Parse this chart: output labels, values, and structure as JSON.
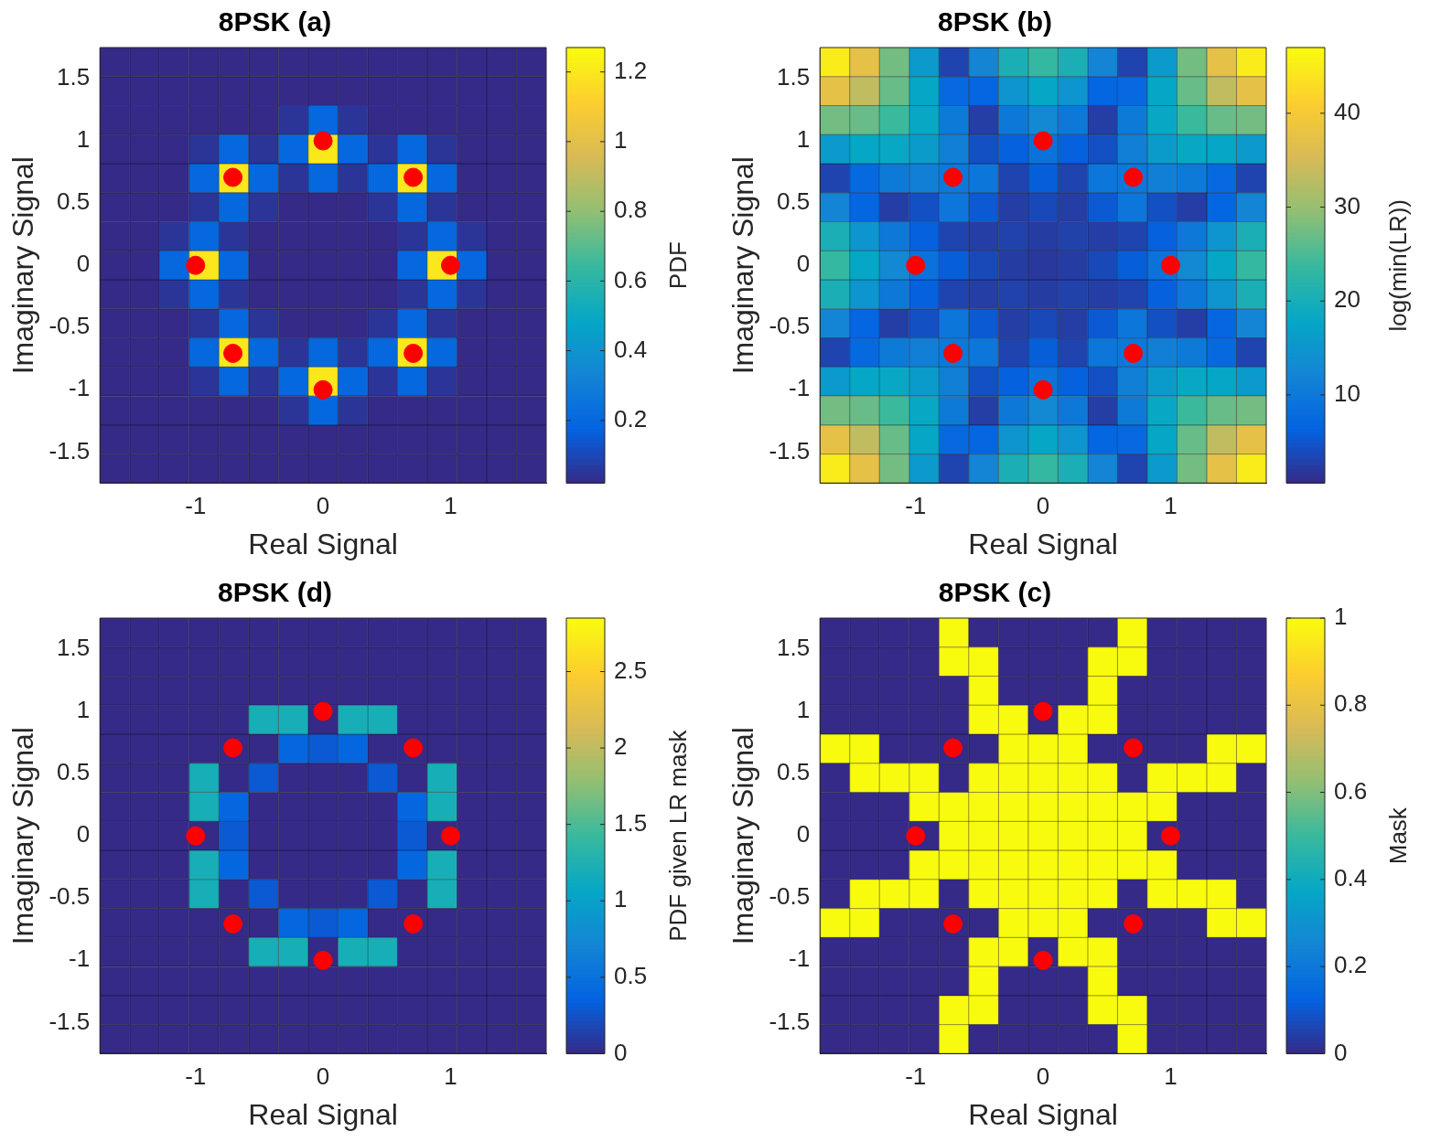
{
  "chart_data": [
    {
      "type": "heatmap",
      "title": "8PSK (a)",
      "xlabel": "Real Signal",
      "ylabel": "Imaginary Signal",
      "clabel": "PDF",
      "x": [
        -1.633,
        -1.4,
        -1.167,
        -0.933,
        -0.7,
        -0.467,
        -0.233,
        0,
        0.233,
        0.467,
        0.7,
        0.933,
        1.167,
        1.4,
        1.633
      ],
      "y": [
        1.633,
        1.4,
        1.167,
        0.933,
        0.7,
        0.467,
        0.233,
        0,
        -0.233,
        -0.467,
        -0.7,
        -0.933,
        -1.167,
        -1.4,
        -1.633
      ],
      "cells": [
        [
          0.02,
          0.02,
          0.02,
          0.02,
          0.02,
          0.02,
          0.02,
          0.02,
          0.02,
          0.02,
          0.02,
          0.02,
          0.02,
          0.02,
          0.02
        ],
        [
          0.02,
          0.02,
          0.02,
          0.02,
          0.02,
          0.02,
          0.02,
          0.02,
          0.02,
          0.02,
          0.02,
          0.02,
          0.02,
          0.02,
          0.02
        ],
        [
          0.02,
          0.02,
          0.02,
          0.02,
          0.02,
          0.02,
          0.05,
          0.2,
          0.05,
          0.02,
          0.02,
          0.02,
          0.02,
          0.02,
          0.02
        ],
        [
          0.02,
          0.02,
          0.02,
          0.05,
          0.2,
          0.05,
          0.2,
          1.2,
          0.2,
          0.05,
          0.2,
          0.05,
          0.02,
          0.02,
          0.02
        ],
        [
          0.02,
          0.02,
          0.02,
          0.2,
          1.2,
          0.2,
          0.05,
          0.2,
          0.05,
          0.2,
          1.2,
          0.2,
          0.02,
          0.02,
          0.02
        ],
        [
          0.02,
          0.02,
          0.02,
          0.05,
          0.2,
          0.05,
          0.02,
          0.02,
          0.02,
          0.05,
          0.2,
          0.05,
          0.02,
          0.02,
          0.02
        ],
        [
          0.02,
          0.02,
          0.05,
          0.2,
          0.05,
          0.02,
          0.02,
          0.02,
          0.02,
          0.02,
          0.05,
          0.2,
          0.05,
          0.02,
          0.02
        ],
        [
          0.02,
          0.02,
          0.2,
          1.2,
          0.2,
          0.02,
          0.02,
          0.02,
          0.02,
          0.02,
          0.2,
          1.2,
          0.2,
          0.02,
          0.02
        ],
        [
          0.02,
          0.02,
          0.05,
          0.2,
          0.05,
          0.02,
          0.02,
          0.02,
          0.02,
          0.02,
          0.05,
          0.2,
          0.05,
          0.02,
          0.02
        ],
        [
          0.02,
          0.02,
          0.02,
          0.05,
          0.2,
          0.05,
          0.02,
          0.02,
          0.02,
          0.05,
          0.2,
          0.05,
          0.02,
          0.02,
          0.02
        ],
        [
          0.02,
          0.02,
          0.02,
          0.2,
          1.2,
          0.2,
          0.05,
          0.2,
          0.05,
          0.2,
          1.2,
          0.2,
          0.02,
          0.02,
          0.02
        ],
        [
          0.02,
          0.02,
          0.02,
          0.05,
          0.2,
          0.05,
          0.2,
          1.2,
          0.2,
          0.05,
          0.2,
          0.05,
          0.02,
          0.02,
          0.02
        ],
        [
          0.02,
          0.02,
          0.02,
          0.02,
          0.02,
          0.02,
          0.05,
          0.2,
          0.05,
          0.02,
          0.02,
          0.02,
          0.02,
          0.02,
          0.02
        ],
        [
          0.02,
          0.02,
          0.02,
          0.02,
          0.02,
          0.02,
          0.02,
          0.02,
          0.02,
          0.02,
          0.02,
          0.02,
          0.02,
          0.02,
          0.02
        ],
        [
          0.02,
          0.02,
          0.02,
          0.02,
          0.02,
          0.02,
          0.02,
          0.02,
          0.02,
          0.02,
          0.02,
          0.02,
          0.02,
          0.02,
          0.02
        ]
      ],
      "clim": [
        0.02,
        1.27
      ],
      "cticks": [
        0.2,
        0.4,
        0.6,
        0.8,
        1,
        1.2
      ],
      "xlim": [
        -1.75,
        1.75
      ],
      "ylim": [
        -1.75,
        1.75
      ],
      "xticks": [
        -1,
        0,
        1
      ],
      "yticks": [
        -1.5,
        -1,
        -0.5,
        0,
        0.5,
        1,
        1.5
      ],
      "series": [
        {
          "type": "scatter",
          "color": "#ff0000",
          "marker": "circle",
          "x": [
            0,
            0.707,
            1,
            0.707,
            0,
            -0.707,
            -1,
            -0.707
          ],
          "values": [
            1,
            0.707,
            0,
            -0.707,
            -1,
            -0.707,
            0,
            0.707
          ]
        }
      ]
    },
    {
      "type": "heatmap",
      "title": "8PSK (b)",
      "xlabel": "Real Signal",
      "ylabel": "Imaginary Signal",
      "clabel": "log(min(LR))",
      "x": [
        -1.633,
        -1.4,
        -1.167,
        -0.933,
        -0.7,
        -0.467,
        -0.233,
        0,
        0.233,
        0.467,
        0.7,
        0.933,
        1.167,
        1.4,
        1.633
      ],
      "y": [
        1.633,
        1.4,
        1.167,
        0.933,
        0.7,
        0.467,
        0.233,
        0,
        -0.233,
        -0.467,
        -0.7,
        -0.933,
        -1.167,
        -1.4,
        -1.633
      ],
      "cells": [
        [
          44.9,
          37.4,
          27.6,
          15.8,
          3.2,
          12.2,
          20.4,
          23.4,
          20.4,
          12.2,
          3.2,
          15.8,
          27.6,
          37.4,
          44.9
        ],
        [
          37.4,
          33.5,
          26.9,
          18.0,
          7.5,
          6.9,
          14.8,
          17.8,
          14.8,
          6.9,
          7.5,
          18.0,
          26.9,
          33.5,
          37.4
        ],
        [
          27.6,
          26.9,
          23.9,
          18.2,
          10.3,
          2.6,
          10.0,
          12.9,
          10.0,
          2.6,
          10.3,
          18.2,
          23.9,
          26.9,
          27.6
        ],
        [
          15.8,
          18.0,
          18.2,
          16.0,
          11.2,
          4.5,
          6.2,
          9.0,
          6.2,
          4.5,
          11.2,
          16.0,
          18.2,
          18.0,
          15.8
        ],
        [
          3.2,
          7.5,
          10.3,
          11.2,
          9.9,
          9.6,
          3.2,
          5.9,
          3.2,
          9.6,
          9.9,
          11.2,
          10.3,
          7.5,
          3.2
        ],
        [
          12.2,
          6.9,
          2.6,
          4.5,
          9.6,
          5.5,
          2.6,
          3.8,
          2.6,
          5.5,
          9.6,
          4.5,
          2.6,
          6.9,
          12.2
        ],
        [
          20.4,
          14.8,
          10.0,
          6.2,
          3.2,
          2.6,
          2.9,
          2.4,
          2.9,
          2.6,
          3.2,
          6.2,
          10.0,
          14.8,
          20.4
        ],
        [
          23.4,
          17.8,
          12.9,
          9.0,
          5.9,
          3.8,
          2.4,
          2.0,
          2.4,
          3.8,
          5.9,
          9.0,
          12.9,
          17.8,
          23.4
        ],
        [
          20.4,
          14.8,
          10.0,
          6.2,
          3.2,
          2.6,
          2.9,
          2.4,
          2.9,
          2.6,
          3.2,
          6.2,
          10.0,
          14.8,
          20.4
        ],
        [
          12.2,
          6.9,
          2.6,
          4.5,
          9.6,
          5.5,
          2.6,
          3.8,
          2.6,
          5.5,
          9.6,
          4.5,
          2.6,
          6.9,
          12.2
        ],
        [
          3.2,
          7.5,
          10.3,
          11.2,
          9.9,
          9.6,
          3.2,
          5.9,
          3.2,
          9.6,
          9.9,
          11.2,
          10.3,
          7.5,
          3.2
        ],
        [
          15.8,
          18.0,
          18.2,
          16.0,
          11.2,
          4.5,
          6.2,
          9.0,
          6.2,
          4.5,
          11.2,
          16.0,
          18.2,
          18.0,
          15.8
        ],
        [
          27.6,
          26.9,
          23.9,
          18.2,
          10.3,
          2.6,
          10.0,
          12.9,
          10.0,
          2.6,
          10.3,
          18.2,
          23.9,
          26.9,
          27.6
        ],
        [
          37.4,
          33.5,
          26.9,
          18.0,
          7.5,
          6.9,
          14.8,
          17.8,
          14.8,
          6.9,
          7.5,
          18.0,
          26.9,
          33.5,
          37.4
        ],
        [
          44.9,
          37.4,
          27.6,
          15.8,
          3.2,
          12.2,
          20.4,
          23.4,
          20.4,
          12.2,
          3.2,
          15.8,
          27.6,
          37.4,
          44.9
        ]
      ],
      "clim": [
        0.6,
        47
      ],
      "cticks": [
        10,
        20,
        30,
        40
      ],
      "xlim": [
        -1.75,
        1.75
      ],
      "ylim": [
        -1.75,
        1.75
      ],
      "xticks": [
        -1,
        0,
        1
      ],
      "yticks": [
        -1.5,
        -1,
        -0.5,
        0,
        0.5,
        1,
        1.5
      ],
      "series": [
        {
          "type": "scatter",
          "color": "#ff0000",
          "marker": "circle",
          "x": [
            0,
            0.707,
            1,
            0.707,
            0,
            -0.707,
            -1,
            -0.707
          ],
          "values": [
            1,
            0.707,
            0,
            -0.707,
            -1,
            -0.707,
            0,
            0.707
          ]
        }
      ]
    },
    {
      "type": "heatmap",
      "title": "8PSK (d)",
      "xlabel": "Real Signal",
      "ylabel": "Imaginary Signal",
      "clabel": "PDF given LR mask",
      "x": [
        -1.633,
        -1.4,
        -1.167,
        -0.933,
        -0.7,
        -0.467,
        -0.233,
        0,
        0.233,
        0.467,
        0.7,
        0.933,
        1.167,
        1.4,
        1.633
      ],
      "y": [
        1.633,
        1.4,
        1.167,
        0.933,
        0.7,
        0.467,
        0.233,
        0,
        -0.233,
        -0.467,
        -0.7,
        -0.933,
        -1.167,
        -1.4,
        -1.633
      ],
      "cells": [
        [
          0,
          0,
          0,
          0,
          0,
          0,
          0,
          0,
          0,
          0,
          0,
          0,
          0,
          0,
          0
        ],
        [
          0,
          0,
          0,
          0,
          0,
          0,
          0,
          0,
          0,
          0,
          0,
          0,
          0,
          0,
          0
        ],
        [
          0,
          0,
          0,
          0,
          0,
          0,
          0,
          0,
          0,
          0,
          0,
          0,
          0,
          0,
          0
        ],
        [
          0,
          0,
          0,
          0,
          0,
          1.2,
          1.2,
          0,
          1.2,
          1.2,
          0,
          0,
          0,
          0,
          0
        ],
        [
          0,
          0,
          0,
          0,
          0,
          0,
          0.4,
          0.3,
          0.4,
          0,
          0,
          0,
          0,
          0,
          0
        ],
        [
          0,
          0,
          0,
          1.2,
          0,
          0.3,
          0,
          0,
          0,
          0.3,
          0,
          1.2,
          0,
          0,
          0
        ],
        [
          0,
          0,
          0,
          1.2,
          0.4,
          0,
          0,
          0,
          0,
          0,
          0.4,
          1.2,
          0,
          0,
          0
        ],
        [
          0,
          0,
          0,
          0,
          0.3,
          0,
          0,
          0,
          0,
          0,
          0.3,
          0,
          0,
          0,
          0
        ],
        [
          0,
          0,
          0,
          1.2,
          0.4,
          0,
          0,
          0,
          0,
          0,
          0.4,
          1.2,
          0,
          0,
          0
        ],
        [
          0,
          0,
          0,
          1.2,
          0,
          0.3,
          0,
          0,
          0,
          0.3,
          0,
          1.2,
          0,
          0,
          0
        ],
        [
          0,
          0,
          0,
          0,
          0,
          0,
          0.4,
          0.3,
          0.4,
          0,
          0,
          0,
          0,
          0,
          0
        ],
        [
          0,
          0,
          0,
          0,
          0,
          1.2,
          1.2,
          0,
          1.2,
          1.2,
          0,
          0,
          0,
          0,
          0
        ],
        [
          0,
          0,
          0,
          0,
          0,
          0,
          0,
          0,
          0,
          0,
          0,
          0,
          0,
          0,
          0
        ],
        [
          0,
          0,
          0,
          0,
          0,
          0,
          0,
          0,
          0,
          0,
          0,
          0,
          0,
          0,
          0
        ],
        [
          0,
          0,
          0,
          0,
          0,
          0,
          0,
          0,
          0,
          0,
          0,
          0,
          0,
          0,
          0
        ]
      ],
      "clim": [
        0,
        2.85
      ],
      "cticks": [
        0,
        0.5,
        1,
        1.5,
        2,
        2.5
      ],
      "xlim": [
        -1.75,
        1.75
      ],
      "ylim": [
        -1.75,
        1.75
      ],
      "xticks": [
        -1,
        0,
        1
      ],
      "yticks": [
        -1.5,
        -1,
        -0.5,
        0,
        0.5,
        1,
        1.5
      ],
      "series": [
        {
          "type": "scatter",
          "color": "#ff0000",
          "marker": "circle",
          "x": [
            0,
            0.707,
            1,
            0.707,
            0,
            -0.707,
            -1,
            -0.707
          ],
          "values": [
            1,
            0.707,
            0,
            -0.707,
            -1,
            -0.707,
            0,
            0.707
          ]
        }
      ]
    },
    {
      "type": "heatmap",
      "title": "8PSK (c)",
      "xlabel": "Real Signal",
      "ylabel": "Imaginary Signal",
      "clabel": "Mask",
      "x": [
        -1.633,
        -1.4,
        -1.167,
        -0.933,
        -0.7,
        -0.467,
        -0.233,
        0,
        0.233,
        0.467,
        0.7,
        0.933,
        1.167,
        1.4,
        1.633
      ],
      "y": [
        1.633,
        1.4,
        1.167,
        0.933,
        0.7,
        0.467,
        0.233,
        0,
        -0.233,
        -0.467,
        -0.7,
        -0.933,
        -1.167,
        -1.4,
        -1.633
      ],
      "cells": [
        [
          0,
          0,
          0,
          0,
          1,
          0,
          0,
          0,
          0,
          0,
          1,
          0,
          0,
          0,
          0
        ],
        [
          0,
          0,
          0,
          0,
          1,
          1,
          0,
          0,
          0,
          1,
          1,
          0,
          0,
          0,
          0
        ],
        [
          0,
          0,
          0,
          0,
          0,
          1,
          0,
          0,
          0,
          1,
          0,
          0,
          0,
          0,
          0
        ],
        [
          0,
          0,
          0,
          0,
          0,
          1,
          1,
          0,
          1,
          1,
          0,
          0,
          0,
          0,
          0
        ],
        [
          1,
          1,
          0,
          0,
          0,
          0,
          1,
          1,
          1,
          0,
          0,
          0,
          0,
          1,
          1
        ],
        [
          0,
          1,
          1,
          1,
          0,
          1,
          1,
          1,
          1,
          1,
          0,
          1,
          1,
          1,
          0
        ],
        [
          0,
          0,
          0,
          1,
          1,
          1,
          1,
          1,
          1,
          1,
          1,
          1,
          0,
          0,
          0
        ],
        [
          0,
          0,
          0,
          0,
          1,
          1,
          1,
          1,
          1,
          1,
          1,
          0,
          0,
          0,
          0
        ],
        [
          0,
          0,
          0,
          1,
          1,
          1,
          1,
          1,
          1,
          1,
          1,
          1,
          0,
          0,
          0
        ],
        [
          0,
          1,
          1,
          1,
          0,
          1,
          1,
          1,
          1,
          1,
          0,
          1,
          1,
          1,
          0
        ],
        [
          1,
          1,
          0,
          0,
          0,
          0,
          1,
          1,
          1,
          0,
          0,
          0,
          0,
          1,
          1
        ],
        [
          0,
          0,
          0,
          0,
          0,
          1,
          1,
          0,
          1,
          1,
          0,
          0,
          0,
          0,
          0
        ],
        [
          0,
          0,
          0,
          0,
          0,
          1,
          0,
          0,
          0,
          1,
          0,
          0,
          0,
          0,
          0
        ],
        [
          0,
          0,
          0,
          0,
          1,
          1,
          0,
          0,
          0,
          1,
          1,
          0,
          0,
          0,
          0
        ],
        [
          0,
          0,
          0,
          0,
          1,
          0,
          0,
          0,
          0,
          0,
          1,
          0,
          0,
          0,
          0
        ]
      ],
      "clim": [
        0,
        1
      ],
      "cticks": [
        0,
        0.2,
        0.4,
        0.6,
        0.8,
        1
      ],
      "xlim": [
        -1.75,
        1.75
      ],
      "ylim": [
        -1.75,
        1.75
      ],
      "xticks": [
        -1,
        0,
        1
      ],
      "yticks": [
        -1.5,
        -1,
        -0.5,
        0,
        0.5,
        1,
        1.5
      ],
      "series": [
        {
          "type": "scatter",
          "color": "#ff0000",
          "marker": "circle",
          "x": [
            0,
            0.707,
            1,
            0.707,
            0,
            -0.707,
            -1,
            -0.707
          ],
          "values": [
            1,
            0.707,
            0,
            -0.707,
            -1,
            -0.707,
            0,
            0.707
          ]
        }
      ]
    }
  ]
}
